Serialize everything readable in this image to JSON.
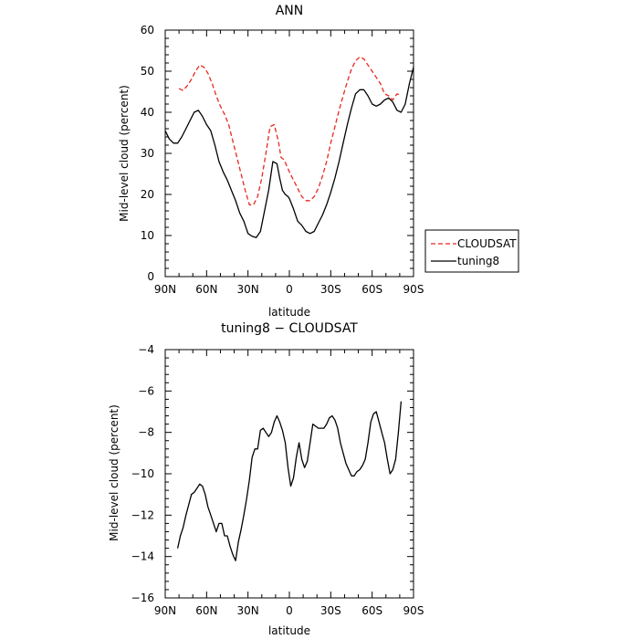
{
  "chart_data": [
    {
      "type": "line",
      "title": "ANN",
      "xlabel": "latitude",
      "ylabel": "Mid-level cloud (percent)",
      "xlim": [
        90,
        -90
      ],
      "ylim": [
        0,
        60
      ],
      "xticks": [
        90,
        60,
        30,
        0,
        -30,
        -60,
        -90
      ],
      "xtick_labels": [
        "90N",
        "60N",
        "30N",
        "0",
        "30S",
        "60S",
        "90S"
      ],
      "yticks": [
        0,
        10,
        20,
        30,
        40,
        50,
        60
      ],
      "ytick_labels": [
        "0",
        "10",
        "20",
        "30",
        "40",
        "50",
        "60"
      ],
      "legend": "right",
      "series": [
        {
          "name": "CLOUDSAT",
          "color": "#e8281e",
          "dash": "dashed",
          "x": [
            80,
            77,
            74,
            71,
            68,
            65,
            62,
            59,
            56,
            53,
            50,
            47,
            44,
            41,
            38,
            35,
            32,
            29,
            26,
            23,
            20,
            17,
            14,
            11,
            8,
            6,
            4,
            2,
            0,
            -3,
            -6,
            -9,
            -12,
            -15,
            -18,
            -21,
            -24,
            -27,
            -30,
            -33,
            -36,
            -39,
            -42,
            -45,
            -48,
            -51,
            -54,
            -57,
            -60,
            -63,
            -66,
            -69,
            -72,
            -75,
            -78,
            -80,
            -81
          ],
          "y": [
            45.8,
            45.3,
            46.5,
            48.0,
            50.0,
            51.5,
            51.0,
            49.5,
            47.0,
            44.0,
            41.5,
            39.5,
            37.0,
            33.0,
            29.0,
            25.0,
            21.0,
            17.5,
            17.5,
            19.5,
            24.0,
            30.0,
            36.5,
            37.0,
            33.0,
            29.0,
            28.5,
            27.0,
            25.5,
            23.5,
            21.5,
            19.5,
            18.5,
            18.5,
            19.5,
            21.5,
            24.5,
            28.0,
            32.5,
            36.5,
            40.5,
            44.0,
            47.5,
            50.5,
            52.5,
            53.5,
            53.0,
            51.5,
            50.0,
            48.5,
            47.0,
            44.5,
            44.0,
            43.0,
            44.5,
            44.2,
            44.0
          ]
        },
        {
          "name": "tuning8",
          "color": "#000000",
          "dash": "solid",
          "x": [
            90,
            87,
            84,
            81,
            78,
            75,
            72,
            69,
            66,
            63,
            60,
            57,
            54,
            51,
            48,
            45,
            42,
            39,
            36,
            33,
            30,
            27,
            24,
            21,
            18,
            15,
            12,
            9,
            7,
            5,
            3,
            1,
            0,
            -3,
            -6,
            -9,
            -12,
            -15,
            -18,
            -21,
            -24,
            -27,
            -30,
            -33,
            -36,
            -39,
            -42,
            -45,
            -48,
            -51,
            -54,
            -57,
            -60,
            -63,
            -66,
            -69,
            -72,
            -75,
            -78,
            -81,
            -84,
            -87,
            -90
          ],
          "y": [
            35.5,
            33.5,
            32.5,
            32.5,
            34.0,
            36.0,
            38.0,
            40.0,
            40.5,
            39.0,
            37.0,
            35.5,
            32.0,
            28.0,
            25.5,
            23.5,
            21.0,
            18.5,
            15.5,
            13.5,
            10.5,
            9.8,
            9.5,
            11.0,
            16.0,
            21.0,
            28.0,
            27.5,
            24.0,
            21.0,
            20.0,
            19.5,
            19.0,
            16.5,
            13.5,
            12.5,
            11.0,
            10.5,
            11.0,
            13.0,
            15.0,
            17.5,
            20.5,
            24.0,
            28.0,
            32.5,
            37.0,
            41.0,
            44.5,
            45.5,
            45.5,
            44.0,
            42.0,
            41.5,
            42.0,
            43.0,
            43.5,
            42.5,
            40.5,
            40.0,
            42.0,
            47.0,
            51.0
          ]
        }
      ]
    },
    {
      "type": "line",
      "title": "tuning8 − CLOUDSAT",
      "xlabel": "latitude",
      "ylabel": "Mid-level cloud (percent)",
      "xlim": [
        90,
        -90
      ],
      "ylim": [
        -16,
        -4
      ],
      "xticks": [
        90,
        60,
        30,
        0,
        -30,
        -60,
        -90
      ],
      "xtick_labels": [
        "90N",
        "60N",
        "30N",
        "0",
        "30S",
        "60S",
        "90S"
      ],
      "yticks": [
        -16,
        -14,
        -12,
        -10,
        -8,
        -6,
        -4
      ],
      "ytick_labels": [
        "−16",
        "−14",
        "−12",
        "−10",
        "−8",
        "−6",
        "−4"
      ],
      "series": [
        {
          "color": "#000000",
          "dash": "solid",
          "x": [
            81,
            79,
            77,
            75,
            73,
            71,
            69,
            67,
            65,
            63,
            61,
            59,
            57,
            55,
            53,
            51,
            49,
            47,
            45,
            43,
            41,
            39,
            37,
            35,
            33,
            31,
            29,
            27,
            25,
            23,
            21,
            19,
            17,
            15,
            13,
            11,
            9,
            7,
            5,
            3,
            1,
            -1,
            -3,
            -5,
            -7,
            -9,
            -11,
            -13,
            -15,
            -17,
            -19,
            -21,
            -23,
            -25,
            -27,
            -29,
            -31,
            -33,
            -35,
            -37,
            -39,
            -41,
            -43,
            -45,
            -47,
            -49,
            -51,
            -53,
            -55,
            -57,
            -59,
            -61,
            -63,
            -65,
            -67,
            -69,
            -71,
            -73,
            -75,
            -77,
            -79,
            -81
          ],
          "y": [
            -13.6,
            -13.0,
            -12.6,
            -12.0,
            -11.5,
            -11.0,
            -10.9,
            -10.7,
            -10.5,
            -10.6,
            -11.0,
            -11.6,
            -12.0,
            -12.4,
            -12.8,
            -12.4,
            -12.4,
            -13.0,
            -13.0,
            -13.5,
            -13.9,
            -14.2,
            -13.3,
            -12.7,
            -12.0,
            -11.2,
            -10.3,
            -9.2,
            -8.8,
            -8.8,
            -7.9,
            -7.8,
            -8.0,
            -8.2,
            -8.0,
            -7.5,
            -7.2,
            -7.5,
            -7.9,
            -8.5,
            -9.7,
            -10.6,
            -10.2,
            -9.2,
            -8.5,
            -9.3,
            -9.7,
            -9.4,
            -8.5,
            -7.6,
            -7.7,
            -7.8,
            -7.8,
            -7.8,
            -7.6,
            -7.3,
            -7.2,
            -7.4,
            -7.8,
            -8.5,
            -9.0,
            -9.5,
            -9.8,
            -10.1,
            -10.1,
            -9.9,
            -9.8,
            -9.6,
            -9.3,
            -8.5,
            -7.5,
            -7.1,
            -7.0,
            -7.5,
            -8.0,
            -8.5,
            -9.3,
            -10.0,
            -9.8,
            -9.3,
            -8.0,
            -6.5
          ]
        }
      ]
    }
  ],
  "legend": {
    "items": [
      {
        "label": "CLOUDSAT",
        "color": "#e8281e",
        "dash": "dashed"
      },
      {
        "label": "tuning8",
        "color": "#000000",
        "dash": "solid"
      }
    ]
  }
}
